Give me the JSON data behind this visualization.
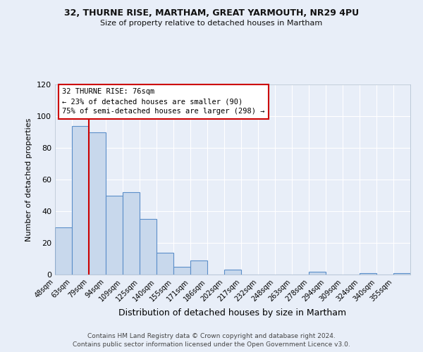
{
  "title1": "32, THURNE RISE, MARTHAM, GREAT YARMOUTH, NR29 4PU",
  "title2": "Size of property relative to detached houses in Martham",
  "xlabel": "Distribution of detached houses by size in Martham",
  "ylabel": "Number of detached properties",
  "footer1": "Contains HM Land Registry data © Crown copyright and database right 2024.",
  "footer2": "Contains public sector information licensed under the Open Government Licence v3.0.",
  "bin_labels": [
    "48sqm",
    "63sqm",
    "79sqm",
    "94sqm",
    "109sqm",
    "125sqm",
    "140sqm",
    "155sqm",
    "171sqm",
    "186sqm",
    "202sqm",
    "217sqm",
    "232sqm",
    "248sqm",
    "263sqm",
    "278sqm",
    "294sqm",
    "309sqm",
    "324sqm",
    "340sqm",
    "355sqm"
  ],
  "bin_values": [
    30,
    94,
    90,
    50,
    52,
    35,
    14,
    5,
    9,
    0,
    3,
    0,
    0,
    0,
    0,
    2,
    0,
    0,
    1,
    0,
    1
  ],
  "property_label": "32 THURNE RISE: 76sqm",
  "pct_smaller": 23,
  "pct_smaller_count": 90,
  "pct_larger_semi": 75,
  "pct_larger_semi_count": 298,
  "bar_color": "#c8d8ec",
  "bar_edge_color": "#5b8fc9",
  "vline_color": "#cc0000",
  "annotation_box_edge": "#cc0000",
  "ylim": [
    0,
    120
  ],
  "yticks": [
    0,
    20,
    40,
    60,
    80,
    100,
    120
  ],
  "bg_color": "#e8eef8",
  "plot_bg": "#e8eef8",
  "grid_color": "#ffffff",
  "title1_fontsize": 9,
  "title2_fontsize": 8,
  "ann_fontsize": 7.5,
  "footer_fontsize": 6.5
}
